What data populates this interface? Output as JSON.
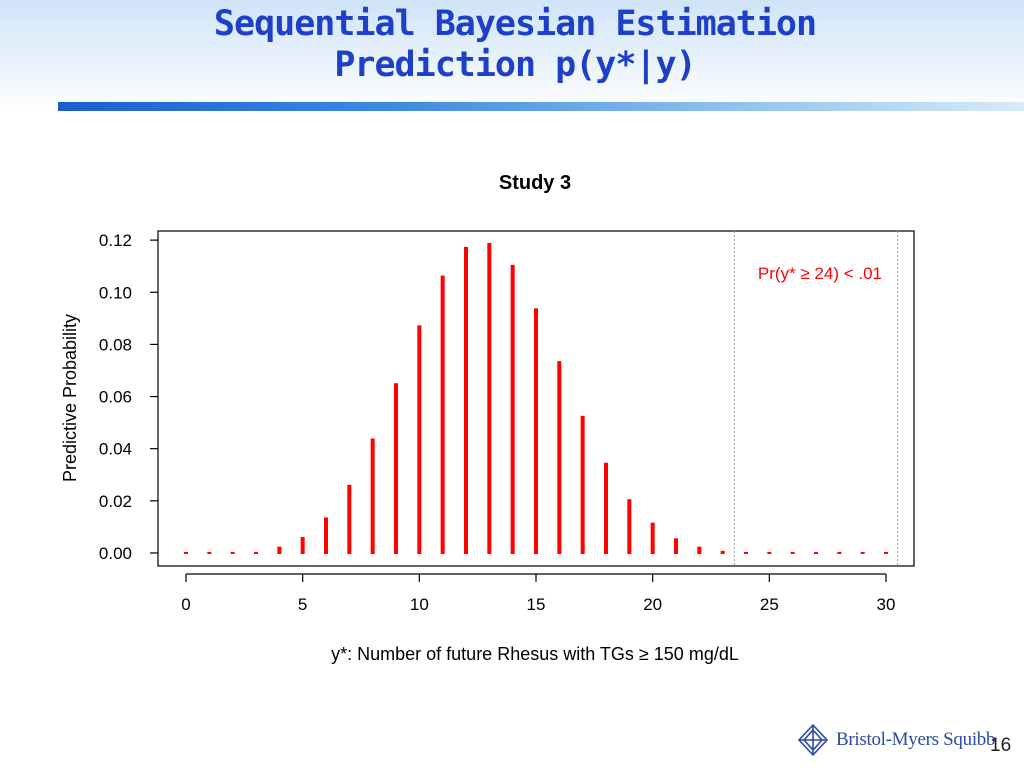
{
  "slide": {
    "title_line1": "Sequential Bayesian Estimation",
    "title_line2": "Prediction p(y*|y)",
    "page_number": "16",
    "logo_text": "Bristol-Myers Squibb"
  },
  "colors": {
    "title": "#1e3fc8",
    "bars": "#ff0000",
    "annotation": "#ff0000",
    "brand": "#2a4aa6"
  },
  "chart_data": {
    "type": "bar",
    "title": "Study 3",
    "xlabel": "y*: Number of future Rhesus with TGs ≥ 150 mg/dL",
    "ylabel": "Predictive Probability",
    "x": [
      0,
      1,
      2,
      3,
      4,
      5,
      6,
      7,
      8,
      9,
      10,
      11,
      12,
      13,
      14,
      15,
      16,
      17,
      18,
      19,
      20,
      21,
      22,
      23,
      24,
      25,
      26,
      27,
      28,
      29,
      30
    ],
    "values": [
      0.0001,
      0.0002,
      0.0003,
      0.0008,
      0.0028,
      0.0065,
      0.014,
      0.0265,
      0.0443,
      0.0655,
      0.0877,
      0.1068,
      0.1178,
      0.1193,
      0.1109,
      0.0942,
      0.074,
      0.053,
      0.035,
      0.021,
      0.012,
      0.006,
      0.0028,
      0.0012,
      0.0004,
      0.0002,
      0.0001,
      0.0001,
      0.0001,
      0.0001,
      0.0001
    ],
    "xlim": [
      -1.2,
      31.2
    ],
    "ylim": [
      -0.005,
      0.1235
    ],
    "xticks": [
      0,
      5,
      10,
      15,
      20,
      25,
      30
    ],
    "xtick_labels": [
      "0",
      "5",
      "10",
      "15",
      "20",
      "25",
      "30"
    ],
    "yticks": [
      0.0,
      0.02,
      0.04,
      0.06,
      0.08,
      0.1,
      0.12
    ],
    "ytick_labels": [
      "0.00",
      "0.02",
      "0.04",
      "0.06",
      "0.08",
      "0.10",
      "0.12"
    ],
    "reference_lines": [
      23.5,
      30.5
    ],
    "annotation": "Pr(y* ≥ 24) < .01",
    "grid": false
  }
}
